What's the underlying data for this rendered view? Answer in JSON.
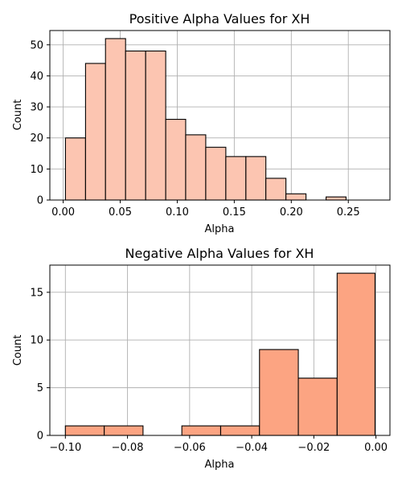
{
  "chart_data": [
    {
      "type": "bar",
      "title": "Positive Alpha Values for XH",
      "xlabel": "Alpha",
      "ylabel": "Count",
      "color": "#fcc5b1",
      "grid": true,
      "xlim": [
        -0.0117,
        0.2865
      ],
      "ylim": [
        0,
        54.6
      ],
      "x_ticks": [
        0.0,
        0.05,
        0.1,
        0.15,
        0.2,
        0.25
      ],
      "x_tick_labels": [
        "0.00",
        "0.05",
        "0.10",
        "0.15",
        "0.20",
        "0.25"
      ],
      "y_ticks": [
        0,
        10,
        20,
        30,
        40,
        50
      ],
      "y_tick_labels": [
        "0",
        "10",
        "20",
        "30",
        "40",
        "50"
      ],
      "bins": [
        [
          0.002,
          0.0196,
          20
        ],
        [
          0.0196,
          0.0371,
          44
        ],
        [
          0.0371,
          0.0547,
          52
        ],
        [
          0.0547,
          0.0723,
          48
        ],
        [
          0.0723,
          0.0899,
          48
        ],
        [
          0.0899,
          0.1074,
          26
        ],
        [
          0.1074,
          0.125,
          21
        ],
        [
          0.125,
          0.1426,
          17
        ],
        [
          0.1426,
          0.1602,
          14
        ],
        [
          0.1602,
          0.1777,
          14
        ],
        [
          0.1777,
          0.1953,
          7
        ],
        [
          0.1953,
          0.2129,
          2
        ],
        [
          0.2129,
          0.2305,
          0
        ],
        [
          0.2305,
          0.248,
          1
        ]
      ]
    },
    {
      "type": "bar",
      "title": "Negative Alpha Values for XH",
      "xlabel": "Alpha",
      "ylabel": "Count",
      "color": "#fca482",
      "grid": true,
      "xlim": [
        -0.105,
        0.0045
      ],
      "ylim": [
        0,
        17.85
      ],
      "x_ticks": [
        -0.1,
        -0.08,
        -0.06,
        -0.04,
        -0.02,
        0.0
      ],
      "x_tick_labels": [
        "−0.10",
        "−0.08",
        "−0.06",
        "−0.04",
        "−0.02",
        "0.00"
      ],
      "y_ticks": [
        0,
        5,
        10,
        15
      ],
      "y_tick_labels": [
        "0",
        "5",
        "10",
        "15"
      ],
      "bins": [
        [
          -0.1,
          -0.0875,
          1
        ],
        [
          -0.0875,
          -0.075,
          1
        ],
        [
          -0.075,
          -0.0625,
          0
        ],
        [
          -0.0625,
          -0.05,
          1
        ],
        [
          -0.05,
          -0.0375,
          1
        ],
        [
          -0.0375,
          -0.025,
          9
        ],
        [
          -0.025,
          -0.0125,
          6
        ],
        [
          -0.0125,
          -0.0003,
          17
        ]
      ]
    }
  ]
}
